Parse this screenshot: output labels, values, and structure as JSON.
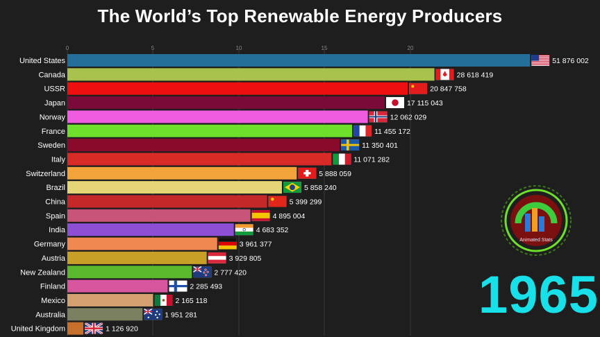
{
  "chart_data": {
    "type": "bar",
    "orientation": "horizontal",
    "title": "The World’s Top Renewable Energy Producers",
    "period_label": "1965",
    "x_ticks": [
      "0",
      "5",
      "10",
      "15",
      "20"
    ],
    "xlim": [
      0,
      56000000
    ],
    "grid": true,
    "categories": [
      "United States",
      "Canada",
      "USSR",
      "Japan",
      "Norway",
      "France",
      "Sweden",
      "Italy",
      "Switzerland",
      "Brazil",
      "China",
      "Spain",
      "India",
      "Germany",
      "Austria",
      "New Zealand",
      "Finland",
      "Mexico",
      "Australia",
      "United Kingdom"
    ],
    "values": [
      51876002,
      28618419,
      20847758,
      17115043,
      12062029,
      11455172,
      11350401,
      11071282,
      5888059,
      5858240,
      5399299,
      4895004,
      4683352,
      3961377,
      3929805,
      2777420,
      2285493,
      2165118,
      1951281,
      1126920
    ],
    "value_labels": [
      "51 876 002",
      "28 618 419",
      "20 847 758",
      "17 115 043",
      "12 062 029",
      "11 455 172",
      "11 350 401",
      "11 071 282",
      "5 888 059",
      "5 858 240",
      "5 399 299",
      "4 895 004",
      "4 683 352",
      "3 961 377",
      "3 929 805",
      "2 777 420",
      "2 285 493",
      "2 165 118",
      "1 951 281",
      "1 126 920"
    ],
    "display_fractions": [
      0.8686,
      0.6892,
      0.639,
      0.5958,
      0.5641,
      0.5347,
      0.5113,
      0.4959,
      0.4306,
      0.4028,
      0.375,
      0.3437,
      0.3125,
      0.2813,
      0.2616,
      0.2338,
      0.1883,
      0.161,
      0.1412,
      0.0301
    ],
    "bar_colors": [
      "#236f9a",
      "#a9c24e",
      "#ee1010",
      "#7a0a38",
      "#f05ce0",
      "#6ee02c",
      "#8a0a2c",
      "#d82a26",
      "#f2a33a",
      "#e6d576",
      "#c42828",
      "#c9547a",
      "#8e4fd7",
      "#f08850",
      "#c8a028",
      "#5ab82c",
      "#d8569e",
      "#d4a070",
      "#7a8060",
      "#c7702c"
    ],
    "flags": [
      "us",
      "ca",
      "su",
      "jp",
      "no",
      "fr",
      "se",
      "it",
      "ch",
      "br",
      "cn",
      "es",
      "in",
      "de",
      "at",
      "nz",
      "fi",
      "mx",
      "au",
      "gb"
    ]
  },
  "watermark": {
    "text": "Animated Stats",
    "icon": "animated-stats-logo"
  }
}
